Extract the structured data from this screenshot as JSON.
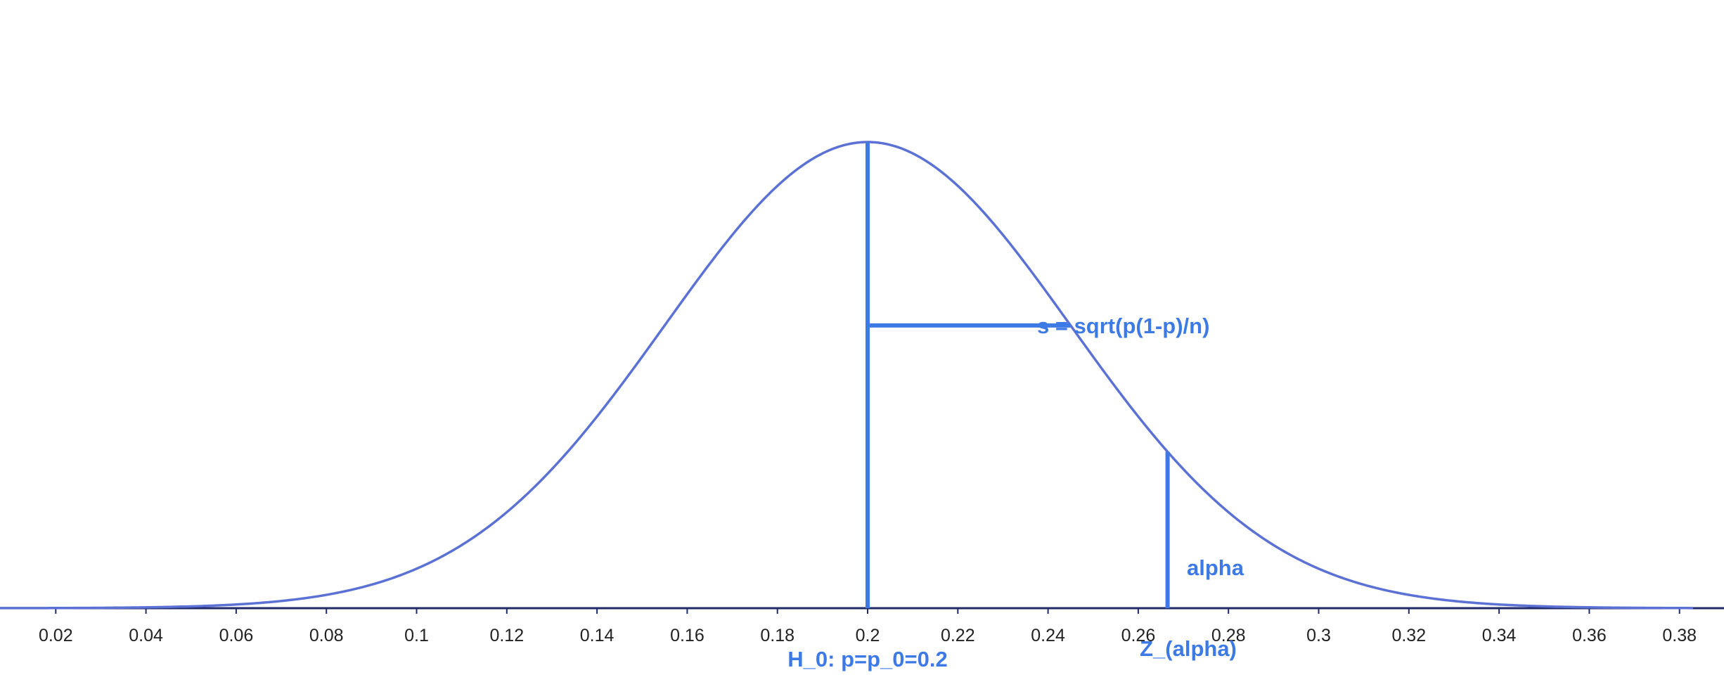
{
  "colors": {
    "curve": "#5b72d4",
    "marker": "#3d7ae6",
    "axis": "#1f2a6b",
    "tick_text": "#222222"
  },
  "chart_data": {
    "type": "line",
    "title": "",
    "xlabel": "",
    "ylabel": "",
    "xlim": [
      0.0,
      0.383
    ],
    "grid": false,
    "legend": "none",
    "series": [
      {
        "kind": "normal-density",
        "mean": 0.2,
        "sd": 0.045
      }
    ],
    "x_ticks": [
      "0.02",
      "0.04",
      "0.06",
      "0.08",
      "0.1",
      "0.12",
      "0.14",
      "0.16",
      "0.18",
      "0.2",
      "0.22",
      "0.24",
      "0.26",
      "0.28",
      "0.3",
      "0.32",
      "0.34",
      "0.36",
      "0.38"
    ],
    "markers": {
      "mean_line_x": 0.2,
      "sd_segment": {
        "from_x": 0.2,
        "to_x": 0.245
      },
      "critical_line_x": 0.2665
    },
    "annotations": {
      "sd_label": "s = sqrt(p(1-p)/n)",
      "alpha_label": "alpha",
      "h0_label": "H_0: p=p_0=0.2",
      "z_label": "Z_(alpha)"
    }
  }
}
